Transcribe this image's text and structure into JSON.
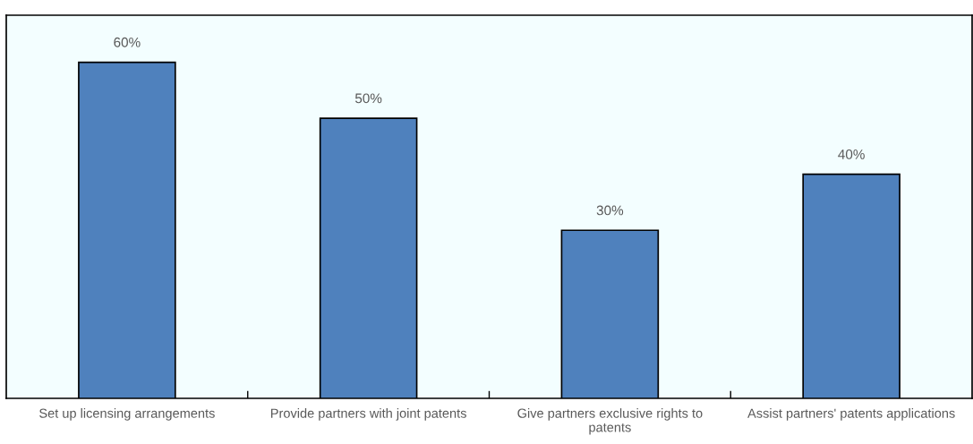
{
  "chart_data": {
    "type": "bar",
    "categories": [
      "Set up licensing arrangements",
      "Provide partners with joint patents",
      "Give partners exclusive rights to\npatents",
      "Assist partners' patents applications"
    ],
    "values": [
      60,
      50,
      30,
      40
    ],
    "value_labels": [
      "60%",
      "50%",
      "30%",
      "40%"
    ],
    "color": "#4f81bd",
    "grid": false,
    "legend": false
  }
}
